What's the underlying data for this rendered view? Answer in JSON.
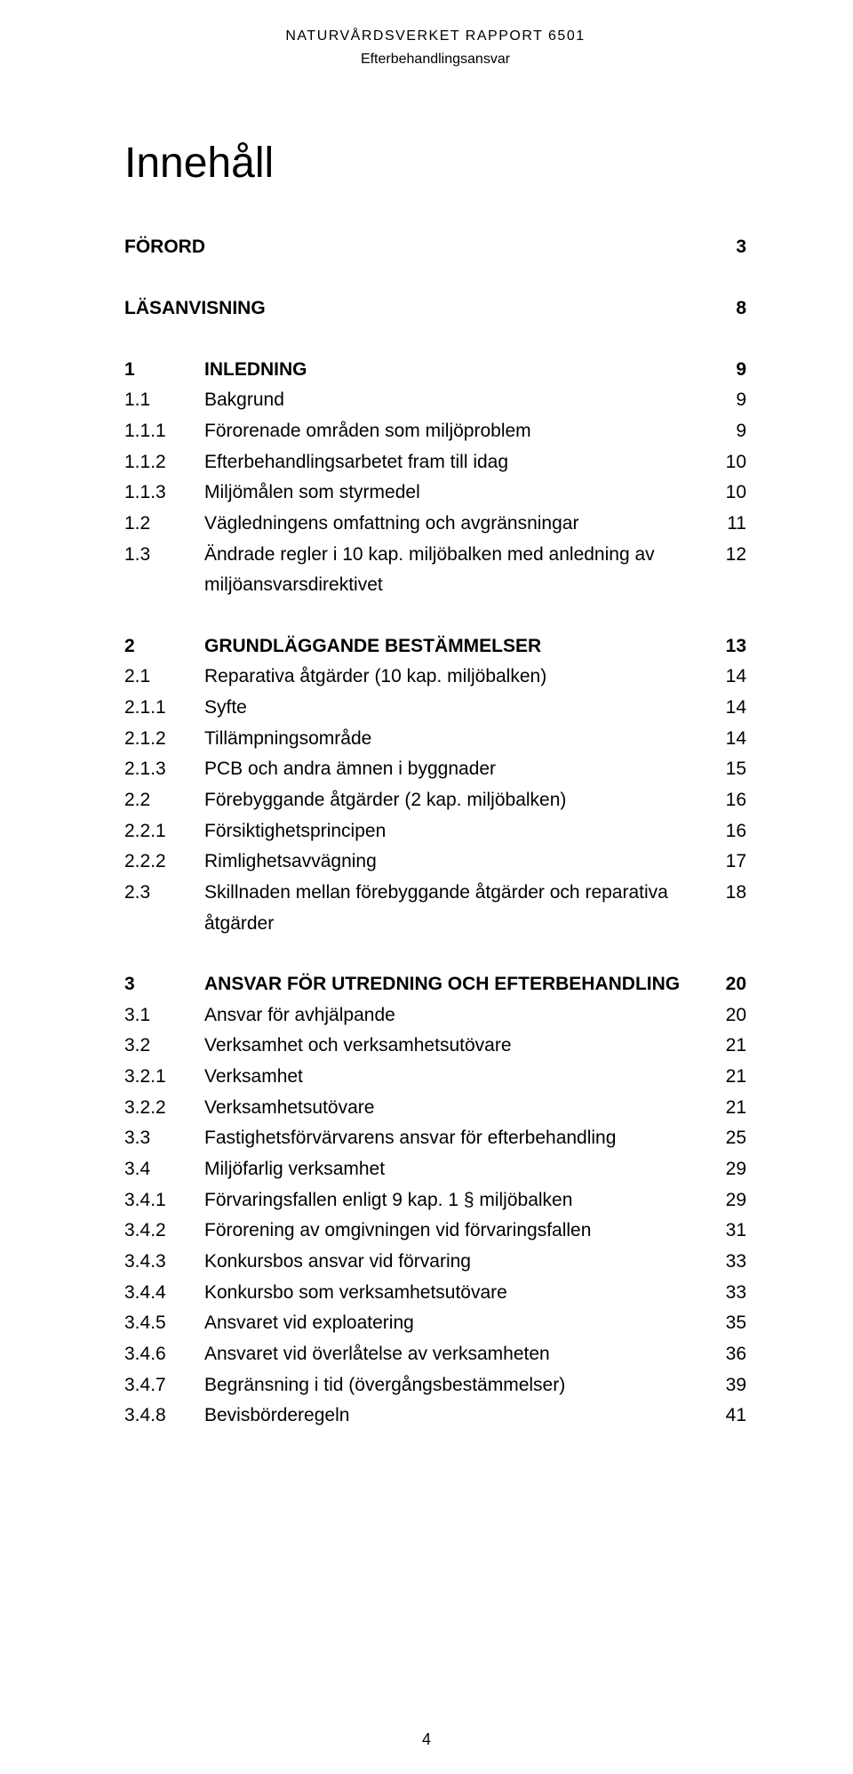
{
  "header": {
    "line1": "NATURVÅRDSVERKET RAPPORT 6501",
    "line2": "Efterbehandlingsansvar"
  },
  "title": "Innehåll",
  "footer_page": "4",
  "blocks": [
    {
      "rows": [
        {
          "num": "",
          "text": "FÖRORD",
          "page": "3",
          "bold": true,
          "nolabel": true
        }
      ]
    },
    {
      "rows": [
        {
          "num": "",
          "text": "LÄSANVISNING",
          "page": "8",
          "bold": true,
          "nolabel": true
        }
      ]
    },
    {
      "rows": [
        {
          "num": "1",
          "text": "INLEDNING",
          "page": "9",
          "bold": true
        },
        {
          "num": "1.1",
          "text": "Bakgrund",
          "page": "9",
          "bold": false
        },
        {
          "num": "1.1.1",
          "text": "Förorenade områden som miljöproblem",
          "page": "9",
          "bold": false
        },
        {
          "num": "1.1.2",
          "text": "Efterbehandlingsarbetet fram till idag",
          "page": "10",
          "bold": false
        },
        {
          "num": "1.1.3",
          "text": "Miljömålen som styrmedel",
          "page": "10",
          "bold": false
        },
        {
          "num": "1.2",
          "text": "Vägledningens omfattning och avgränsningar",
          "page": "11",
          "bold": false
        },
        {
          "num": "1.3",
          "text": "Ändrade regler i 10 kap. miljöbalken med anledning av miljöansvarsdirektivet",
          "page": "12",
          "bold": false
        }
      ]
    },
    {
      "rows": [
        {
          "num": "2",
          "text": "GRUNDLÄGGANDE BESTÄMMELSER",
          "page": "13",
          "bold": true
        },
        {
          "num": "2.1",
          "text": "Reparativa åtgärder (10 kap. miljöbalken)",
          "page": "14",
          "bold": false
        },
        {
          "num": "2.1.1",
          "text": "Syfte",
          "page": "14",
          "bold": false
        },
        {
          "num": "2.1.2",
          "text": "Tillämpningsområde",
          "page": "14",
          "bold": false
        },
        {
          "num": "2.1.3",
          "text": "PCB och andra ämnen i byggnader",
          "page": "15",
          "bold": false
        },
        {
          "num": "2.2",
          "text": "Förebyggande åtgärder (2 kap. miljöbalken)",
          "page": "16",
          "bold": false
        },
        {
          "num": "2.2.1",
          "text": "Försiktighetsprincipen",
          "page": "16",
          "bold": false
        },
        {
          "num": "2.2.2",
          "text": "Rimlighetsavvägning",
          "page": "17",
          "bold": false
        },
        {
          "num": "2.3",
          "text": "Skillnaden mellan förebyggande åtgärder och reparativa åtgärder",
          "page": "18",
          "bold": false
        }
      ]
    },
    {
      "rows": [
        {
          "num": "3",
          "text": "ANSVAR FÖR UTREDNING OCH EFTERBEHANDLING",
          "page": "20",
          "bold": true
        },
        {
          "num": "3.1",
          "text": "Ansvar för avhjälpande",
          "page": "20",
          "bold": false
        },
        {
          "num": "3.2",
          "text": "Verksamhet och verksamhetsutövare",
          "page": "21",
          "bold": false
        },
        {
          "num": "3.2.1",
          "text": "Verksamhet",
          "page": "21",
          "bold": false
        },
        {
          "num": "3.2.2",
          "text": "Verksamhetsutövare",
          "page": "21",
          "bold": false
        },
        {
          "num": "3.3",
          "text": "Fastighetsförvärvarens ansvar för efterbehandling",
          "page": "25",
          "bold": false
        },
        {
          "num": "3.4",
          "text": "Miljöfarlig verksamhet",
          "page": "29",
          "bold": false
        },
        {
          "num": "3.4.1",
          "text": "Förvaringsfallen enligt 9 kap. 1 § miljöbalken",
          "page": "29",
          "bold": false
        },
        {
          "num": "3.4.2",
          "text": "Förorening av omgivningen vid förvaringsfallen",
          "page": "31",
          "bold": false
        },
        {
          "num": "3.4.3",
          "text": "Konkursbos ansvar vid förvaring",
          "page": "33",
          "bold": false
        },
        {
          "num": "3.4.4",
          "text": "Konkursbo som verksamhetsutövare",
          "page": "33",
          "bold": false
        },
        {
          "num": "3.4.5",
          "text": "Ansvaret vid exploatering",
          "page": "35",
          "bold": false
        },
        {
          "num": "3.4.6",
          "text": "Ansvaret vid överlåtelse av verksamheten",
          "page": "36",
          "bold": false
        },
        {
          "num": "3.4.7",
          "text": "Begränsning i tid (övergångsbestämmelser)",
          "page": "39",
          "bold": false
        },
        {
          "num": "3.4.8",
          "text": "Bevisbörderegeln",
          "page": "41",
          "bold": false
        }
      ]
    }
  ]
}
